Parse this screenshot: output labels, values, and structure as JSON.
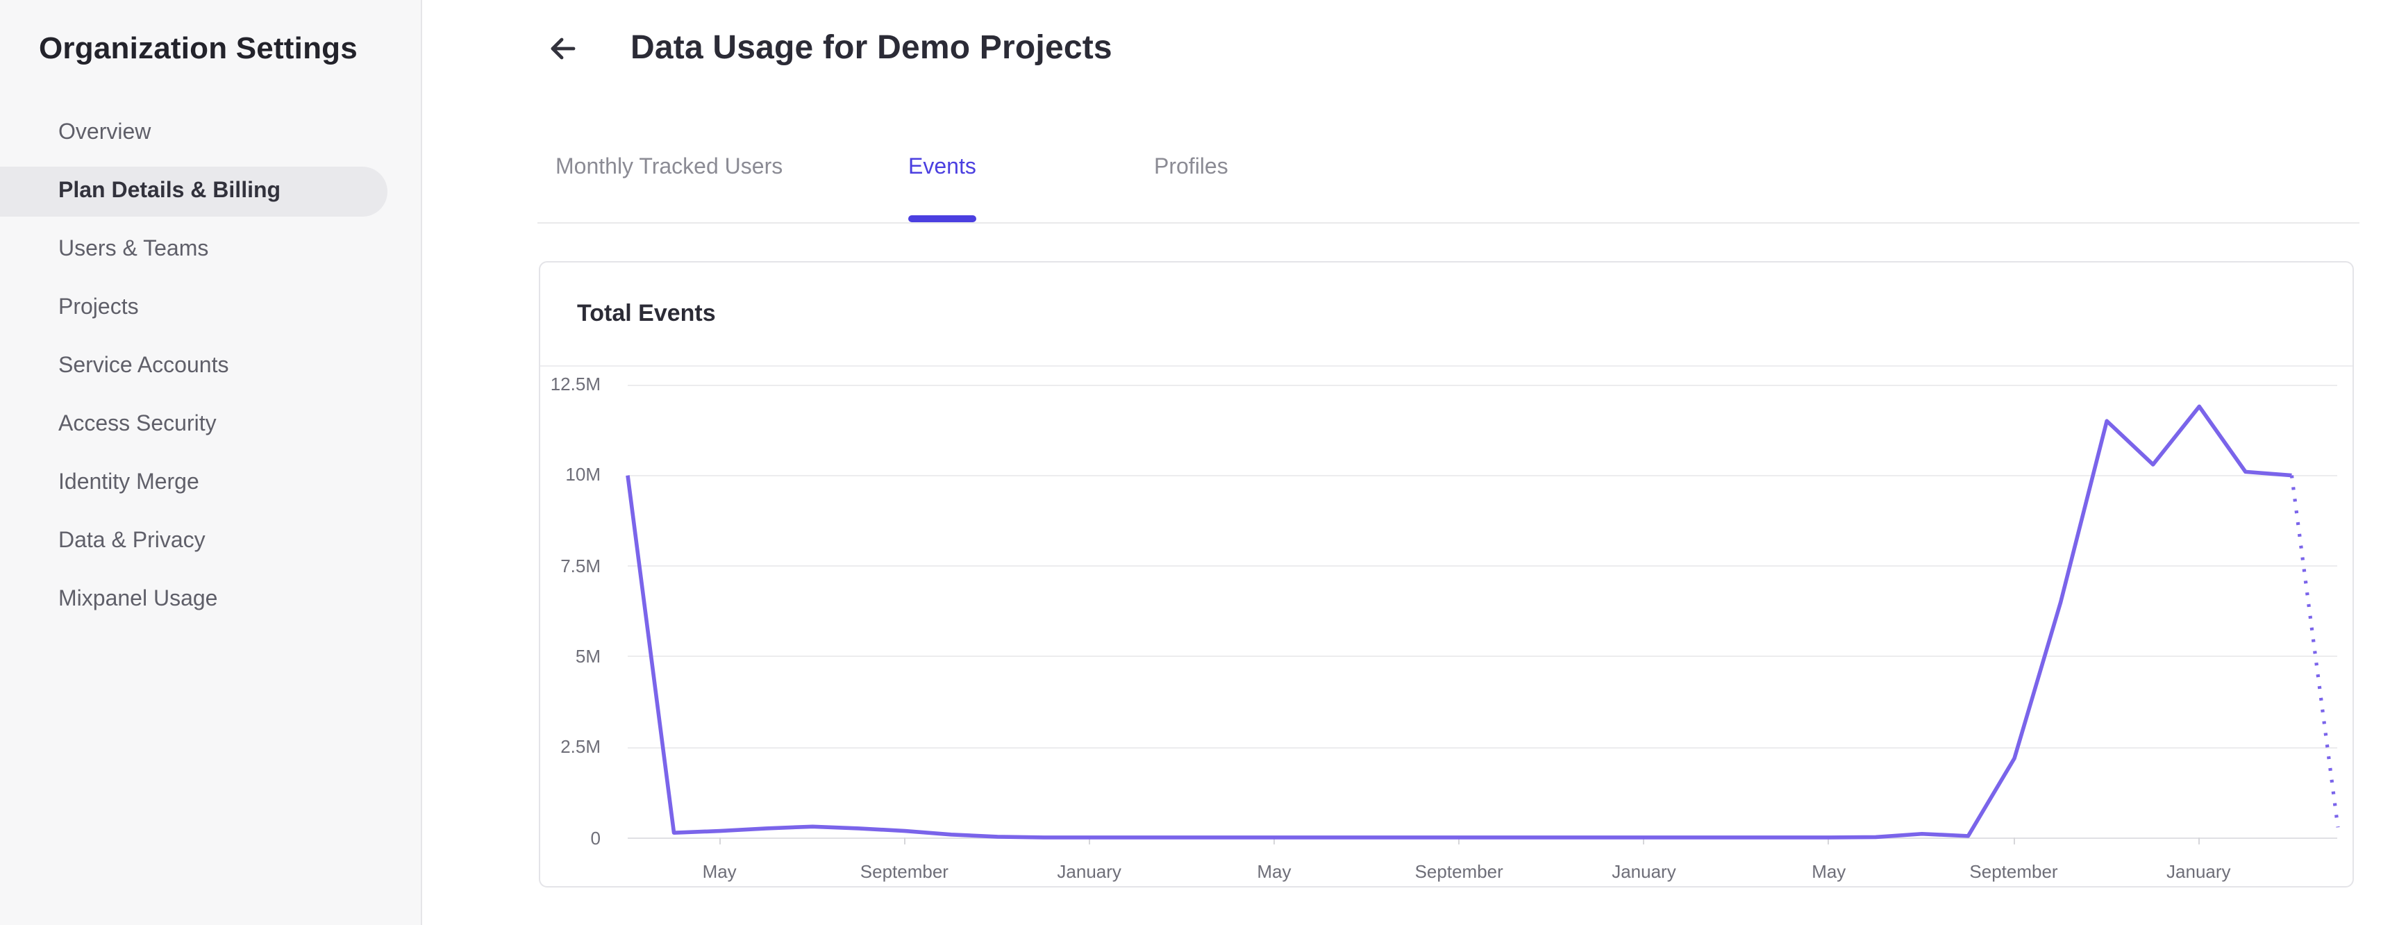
{
  "sidebar": {
    "title": "Organization Settings",
    "items": [
      {
        "label": "Overview",
        "selected": false
      },
      {
        "label": "Plan Details & Billing",
        "selected": true
      },
      {
        "label": "Users & Teams",
        "selected": false
      },
      {
        "label": "Projects",
        "selected": false
      },
      {
        "label": "Service Accounts",
        "selected": false
      },
      {
        "label": "Access Security",
        "selected": false
      },
      {
        "label": "Identity Merge",
        "selected": false
      },
      {
        "label": "Data & Privacy",
        "selected": false
      },
      {
        "label": "Mixpanel Usage",
        "selected": false
      }
    ]
  },
  "header": {
    "title": "Data Usage for Demo Projects",
    "back_icon": "arrow-left-icon"
  },
  "tabs": [
    {
      "label": "Monthly Tracked Users",
      "active": false
    },
    {
      "label": "Events",
      "active": true
    },
    {
      "label": "Profiles",
      "active": false
    }
  ],
  "card": {
    "title": "Total Events"
  },
  "chart_data": {
    "type": "line",
    "title": "Total Events",
    "series": [
      {
        "name": "Total Events",
        "values_millions": [
          10,
          0.15,
          0.2,
          0.27,
          0.32,
          0.27,
          0.2,
          0.1,
          0.04,
          0.02,
          0.02,
          0.02,
          0.02,
          0.02,
          0.02,
          0.02,
          0.02,
          0.02,
          0.02,
          0.02,
          0.02,
          0.02,
          0.02,
          0.02,
          0.02,
          0.02,
          0.02,
          0.03,
          0.12,
          0.06,
          2.2,
          6.5,
          11.5,
          10.3,
          11.9,
          10.1,
          10,
          0.3
        ]
      }
    ],
    "dotted_from_index": 36,
    "projection_dotted": true,
    "x_tick_labels": [
      "May",
      "September",
      "January",
      "May",
      "September",
      "January",
      "May",
      "September",
      "January"
    ],
    "x_tick_indices": [
      2,
      6,
      10,
      14,
      18,
      22,
      26,
      30,
      34
    ],
    "y_tick_labels": [
      "12.5M",
      "10M",
      "7.5M",
      "5M",
      "2.5M",
      "0"
    ],
    "ylim_millions": [
      0,
      12.5
    ],
    "grid": "horizontal",
    "legend": "none",
    "line_color": "#7a64ea"
  },
  "colors": {
    "accent_purple": "#4b3fe0",
    "line_purple": "#7a64ea",
    "sidebar_bg": "#f7f7f8",
    "selected_pill": "#e9e9ec",
    "text_dark": "#2b2b36",
    "text_gray": "#5f5f69",
    "axis_gray": "#6e6e78",
    "border_gray": "#e4e4e8"
  }
}
